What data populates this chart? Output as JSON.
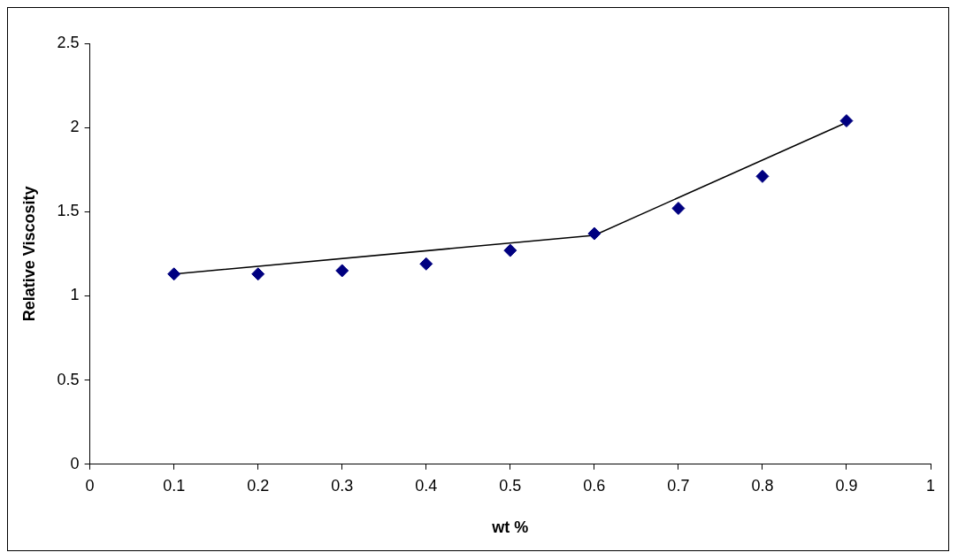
{
  "chart_data": {
    "type": "scatter",
    "xlabel": "wt %",
    "ylabel": "Relative Viscosity",
    "xlim": [
      0,
      1
    ],
    "xticks": [
      0,
      0.1,
      0.2,
      0.3,
      0.4,
      0.5,
      0.6,
      0.7,
      0.8,
      0.9,
      1
    ],
    "ylim": [
      0,
      2.5
    ],
    "yticks": [
      0,
      0.5,
      1,
      1.5,
      2,
      2.5
    ],
    "grid": false,
    "legend": false,
    "series": [
      {
        "type": "scatter",
        "color": "#000080",
        "marker": "diamond",
        "x": [
          0.1,
          0.2,
          0.3,
          0.4,
          0.5,
          0.6,
          0.7,
          0.8,
          0.9
        ],
        "values": [
          1.13,
          1.13,
          1.15,
          1.19,
          1.27,
          1.37,
          1.52,
          1.71,
          2.04
        ]
      },
      {
        "type": "line",
        "color": "#000000",
        "marker": "none",
        "line_style": "solid",
        "x": [
          0.1,
          0.6,
          0.9
        ],
        "values": [
          1.13,
          1.36,
          2.03
        ]
      }
    ]
  }
}
